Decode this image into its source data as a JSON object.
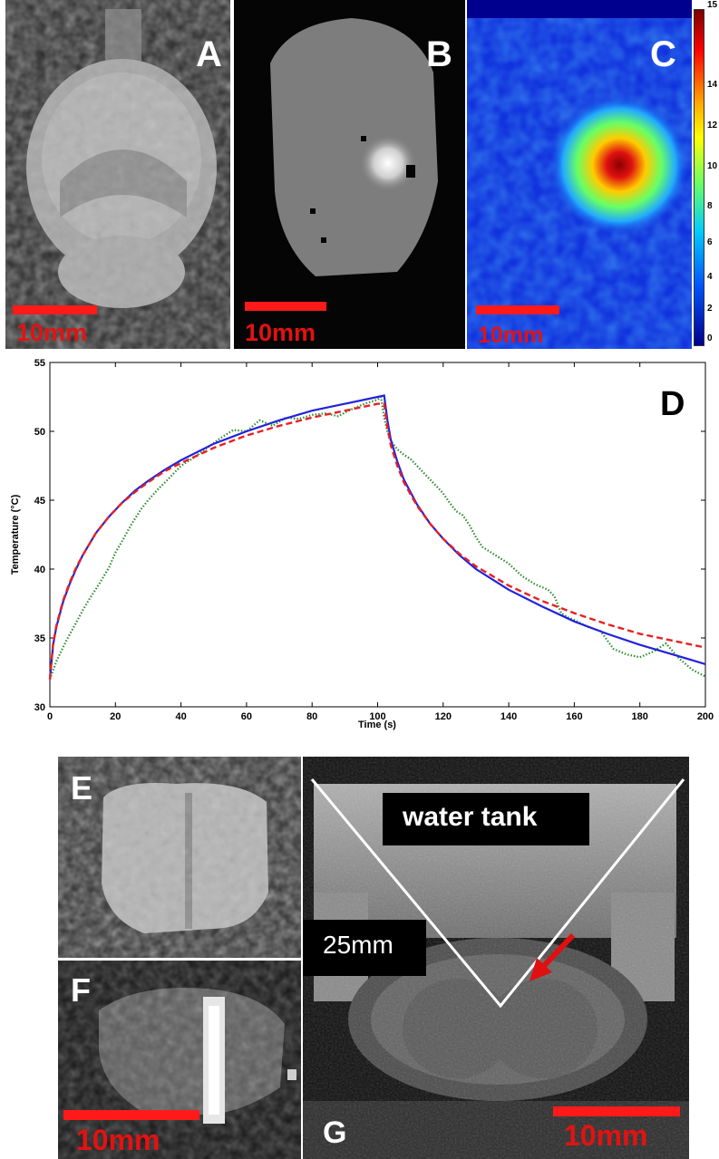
{
  "figure": {
    "panel_a": {
      "letter": "A",
      "scale_label": "10mm"
    },
    "panel_b": {
      "letter": "B",
      "scale_label": "10mm"
    },
    "panel_c": {
      "letter": "C",
      "scale_label": "10mm",
      "colorbar_ticks": [
        "0",
        "2",
        "4",
        "6",
        "8",
        "10",
        "12",
        "14",
        "15"
      ]
    },
    "panel_d": {
      "letter": "D"
    },
    "panel_e": {
      "letter": "E"
    },
    "panel_f": {
      "letter": "F",
      "scale_label": "10mm"
    },
    "panel_g": {
      "letter": "G",
      "scale_label": "10mm",
      "label_water": "water tank",
      "label_depth": "25mm"
    },
    "colors": {
      "scale_bar": "#ff1a1a",
      "scale_text": "#e31212",
      "series_measured": "#2e8b2e",
      "series_fit_solid": "#2222dd",
      "series_fit_dashed": "#e82020"
    }
  },
  "chart_data": {
    "type": "line",
    "title": "",
    "xlabel": "Time (s)",
    "ylabel": "Temperature (°C)",
    "xlim": [
      0,
      200
    ],
    "ylim": [
      30,
      55
    ],
    "xticks": [
      0,
      20,
      40,
      60,
      80,
      100,
      120,
      140,
      160,
      180,
      200
    ],
    "yticks": [
      30,
      35,
      40,
      45,
      50,
      55
    ],
    "grid": false,
    "legend": "none",
    "series": [
      {
        "style": "dotted",
        "color": "#2e8b2e",
        "x": [
          0,
          2,
          5,
          8,
          10,
          12,
          15,
          18,
          20,
          22,
          25,
          28,
          30,
          33,
          36,
          40,
          44,
          48,
          52,
          56,
          60,
          64,
          68,
          72,
          76,
          80,
          84,
          88,
          92,
          96,
          100,
          101,
          102,
          103,
          104,
          106,
          108,
          110,
          114,
          118,
          120,
          122,
          124,
          126,
          128,
          130,
          132,
          136,
          140,
          144,
          148,
          152,
          154,
          156,
          158,
          160,
          164,
          168,
          172,
          176,
          180,
          184,
          188,
          192,
          196,
          200
        ],
        "y": [
          32.0,
          33.3,
          34.8,
          36.1,
          37.0,
          37.8,
          38.9,
          40.1,
          41.2,
          42.0,
          43.3,
          44.4,
          45.0,
          45.8,
          46.5,
          47.5,
          48.1,
          48.8,
          49.5,
          50.1,
          50.0,
          50.8,
          50.4,
          51.0,
          50.9,
          51.2,
          51.3,
          51.1,
          51.6,
          52.0,
          52.3,
          52.5,
          51.0,
          50.0,
          49.3,
          48.7,
          48.3,
          48.0,
          47.0,
          46.0,
          45.5,
          44.8,
          44.2,
          43.9,
          43.2,
          42.3,
          41.6,
          41.0,
          40.4,
          39.5,
          38.9,
          38.5,
          38.0,
          36.8,
          36.5,
          36.3,
          35.8,
          35.5,
          34.2,
          33.8,
          33.6,
          34.0,
          34.6,
          33.5,
          32.7,
          32.2
        ]
      },
      {
        "style": "solid",
        "color": "#2222dd",
        "x": [
          0,
          1,
          2,
          4,
          6,
          8,
          10,
          14,
          18,
          22,
          26,
          30,
          35,
          40,
          50,
          60,
          70,
          80,
          90,
          100,
          102,
          103,
          104,
          106,
          108,
          112,
          116,
          120,
          125,
          130,
          140,
          150,
          160,
          170,
          180,
          190,
          200
        ],
        "y": [
          32.0,
          34.5,
          35.8,
          37.6,
          38.9,
          40.0,
          41.0,
          42.6,
          43.8,
          44.8,
          45.7,
          46.4,
          47.2,
          47.9,
          49.1,
          50.0,
          50.8,
          51.5,
          52.0,
          52.5,
          52.6,
          50.8,
          49.4,
          47.8,
          46.5,
          44.7,
          43.3,
          42.2,
          41.0,
          40.0,
          38.5,
          37.3,
          36.2,
          35.3,
          34.5,
          33.8,
          33.1
        ]
      },
      {
        "style": "dashed",
        "color": "#e82020",
        "x": [
          0,
          1,
          2,
          4,
          6,
          8,
          10,
          14,
          18,
          22,
          26,
          30,
          35,
          40,
          50,
          60,
          70,
          80,
          90,
          100,
          102,
          103,
          104,
          106,
          108,
          112,
          116,
          120,
          125,
          130,
          140,
          150,
          160,
          170,
          180,
          190,
          200
        ],
        "y": [
          32.0,
          34.6,
          35.9,
          37.7,
          39.0,
          40.1,
          41.0,
          42.6,
          43.8,
          44.8,
          45.6,
          46.3,
          47.1,
          47.7,
          48.8,
          49.7,
          50.4,
          51.0,
          51.5,
          52.0,
          52.0,
          50.3,
          49.0,
          47.5,
          46.3,
          44.6,
          43.3,
          42.2,
          41.1,
          40.2,
          38.8,
          37.7,
          36.8,
          36.0,
          35.3,
          34.8,
          34.3
        ]
      }
    ]
  }
}
